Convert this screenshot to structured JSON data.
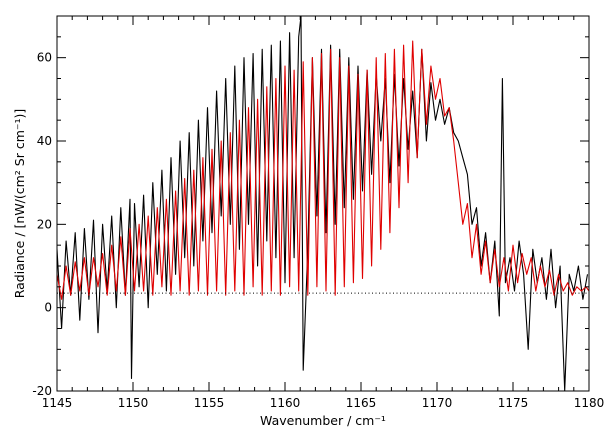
{
  "chart_data": {
    "type": "line",
    "title": "",
    "xlabel": "Wavenumber / cm⁻¹",
    "ylabel": "Radiance  / [nW/(cm² Sr cm⁻¹)]",
    "xlim": [
      1145,
      1180
    ],
    "ylim": [
      -20,
      70
    ],
    "xticks": [
      1145,
      1150,
      1155,
      1160,
      1165,
      1170,
      1175,
      1180
    ],
    "yticks": [
      -20,
      0,
      20,
      40,
      60
    ],
    "grid": false,
    "legend": "none",
    "colors": {
      "measured": "#000000",
      "model": "#e00000",
      "zero": "#000000",
      "frame": "#000000"
    },
    "series": [
      {
        "color": "#000000",
        "x": [
          1145.0,
          1145.3,
          1145.6,
          1145.9,
          1146.2,
          1146.5,
          1146.8,
          1147.1,
          1147.4,
          1147.7,
          1148.0,
          1148.3,
          1148.6,
          1148.9,
          1149.2,
          1149.5,
          1149.8,
          1149.9,
          1150.1,
          1150.4,
          1150.7,
          1151.0,
          1151.3,
          1151.6,
          1151.9,
          1152.2,
          1152.5,
          1152.8,
          1153.1,
          1153.4,
          1153.7,
          1154.0,
          1154.3,
          1154.6,
          1154.9,
          1155.2,
          1155.5,
          1155.8,
          1156.1,
          1156.4,
          1156.7,
          1157.0,
          1157.3,
          1157.6,
          1157.9,
          1158.2,
          1158.5,
          1158.8,
          1159.1,
          1159.4,
          1159.7,
          1160.0,
          1160.3,
          1160.6,
          1160.9,
          1161.05,
          1161.2,
          1161.5,
          1161.8,
          1162.1,
          1162.4,
          1162.7,
          1163.0,
          1163.3,
          1163.6,
          1163.9,
          1164.2,
          1164.5,
          1164.8,
          1165.1,
          1165.4,
          1165.7,
          1166.0,
          1166.3,
          1166.6,
          1166.9,
          1167.2,
          1167.5,
          1167.8,
          1168.1,
          1168.4,
          1168.7,
          1169.0,
          1169.3,
          1169.6,
          1169.9,
          1170.2,
          1170.5,
          1170.8,
          1171.1,
          1171.4,
          1171.7,
          1172.0,
          1172.3,
          1172.6,
          1172.9,
          1173.2,
          1173.5,
          1173.8,
          1174.1,
          1174.3,
          1174.5,
          1174.8,
          1175.1,
          1175.4,
          1175.7,
          1176.0,
          1176.3,
          1176.6,
          1176.9,
          1177.2,
          1177.5,
          1177.8,
          1178.1,
          1178.4,
          1178.7,
          1179.0,
          1179.3,
          1179.6,
          1179.9
        ],
        "y": [
          14,
          -5,
          16,
          3,
          18,
          -3,
          19,
          2,
          21,
          -6,
          20,
          4,
          22,
          0,
          24,
          3,
          26,
          -17,
          25,
          5,
          27,
          0,
          30,
          8,
          33,
          4,
          36,
          8,
          40,
          12,
          42,
          10,
          45,
          16,
          48,
          18,
          52,
          22,
          55,
          20,
          58,
          14,
          60,
          20,
          61,
          10,
          62,
          16,
          63,
          12,
          64,
          6,
          66,
          12,
          65,
          70,
          -15,
          14,
          60,
          22,
          62,
          18,
          63,
          20,
          62,
          24,
          60,
          26,
          58,
          28,
          57,
          32,
          56,
          40,
          55,
          30,
          56,
          34,
          55,
          38,
          52,
          36,
          62,
          40,
          54,
          45,
          50,
          44,
          48,
          42,
          40,
          36,
          32,
          20,
          24,
          10,
          18,
          6,
          16,
          -2,
          55,
          6,
          12,
          4,
          16,
          8,
          -10,
          14,
          6,
          12,
          2,
          14,
          0,
          10,
          -20,
          8,
          4,
          10,
          2,
          8
        ]
      },
      {
        "color": "#e00000",
        "x": [
          1145.0,
          1145.3,
          1145.6,
          1145.9,
          1146.2,
          1146.5,
          1146.8,
          1147.1,
          1147.4,
          1147.7,
          1148.0,
          1148.3,
          1148.6,
          1148.9,
          1149.2,
          1149.5,
          1149.8,
          1150.1,
          1150.4,
          1150.7,
          1151.0,
          1151.3,
          1151.6,
          1151.9,
          1152.2,
          1152.5,
          1152.8,
          1153.1,
          1153.4,
          1153.7,
          1154.0,
          1154.3,
          1154.6,
          1154.9,
          1155.2,
          1155.5,
          1155.8,
          1156.1,
          1156.4,
          1156.7,
          1157.0,
          1157.3,
          1157.6,
          1157.9,
          1158.2,
          1158.5,
          1158.8,
          1159.1,
          1159.4,
          1159.7,
          1160.0,
          1160.3,
          1160.6,
          1160.9,
          1161.2,
          1161.5,
          1161.8,
          1162.1,
          1162.4,
          1162.7,
          1163.0,
          1163.3,
          1163.6,
          1163.9,
          1164.2,
          1164.5,
          1164.8,
          1165.1,
          1165.4,
          1165.7,
          1166.0,
          1166.3,
          1166.6,
          1166.9,
          1167.2,
          1167.5,
          1167.8,
          1168.1,
          1168.4,
          1168.7,
          1169.0,
          1169.3,
          1169.6,
          1169.9,
          1170.2,
          1170.5,
          1170.8,
          1171.1,
          1171.4,
          1171.7,
          1172.0,
          1172.3,
          1172.6,
          1172.9,
          1173.2,
          1173.5,
          1173.8,
          1174.1,
          1174.4,
          1174.7,
          1175.0,
          1175.3,
          1175.6,
          1175.9,
          1176.2,
          1176.5,
          1176.8,
          1177.1,
          1177.4,
          1177.7,
          1178.0,
          1178.3,
          1178.6,
          1178.9,
          1179.2,
          1179.5,
          1179.8,
          1180.0
        ],
        "y": [
          8,
          2,
          10,
          3,
          11,
          4,
          12,
          3,
          12,
          5,
          13,
          3,
          15,
          4,
          17,
          3,
          19,
          4,
          20,
          4,
          22,
          3,
          24,
          5,
          26,
          3,
          28,
          4,
          31,
          3,
          33,
          4,
          36,
          3,
          38,
          4,
          40,
          3,
          42,
          4,
          45,
          3,
          48,
          5,
          50,
          3,
          53,
          4,
          55,
          3,
          58,
          5,
          57,
          4,
          59,
          3,
          60,
          5,
          61,
          4,
          62,
          3,
          60,
          5,
          58,
          6,
          56,
          7,
          57,
          10,
          60,
          14,
          61,
          18,
          62,
          24,
          63,
          30,
          64,
          36,
          62,
          44,
          58,
          50,
          55,
          46,
          48,
          40,
          30,
          20,
          25,
          12,
          20,
          8,
          16,
          6,
          14,
          5,
          12,
          4,
          15,
          6,
          13,
          8,
          12,
          4,
          10,
          5,
          9,
          3,
          8,
          4,
          6,
          3,
          5,
          4,
          5,
          4
        ]
      },
      {
        "color": "#000000",
        "dash": "dotted",
        "x": [
          1145,
          1180
        ],
        "y": [
          3.5,
          3.5
        ]
      }
    ]
  }
}
